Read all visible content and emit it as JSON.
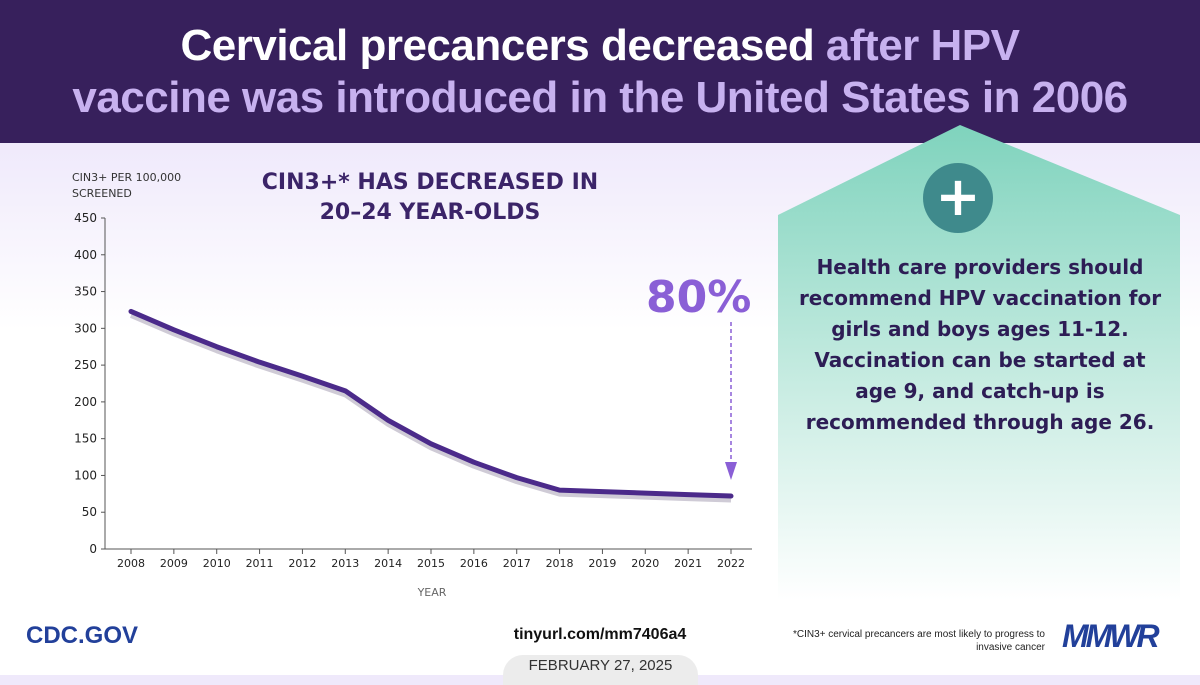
{
  "header": {
    "title_white": "Cervical precancers decreased ",
    "title_light_1": "after HPV",
    "title_light_2": "vaccine was introduced in the United States in 2006"
  },
  "chart_data": {
    "type": "line",
    "title": "CIN3+* HAS DECREASED IN 20–24 YEAR-OLDS",
    "title_line1": "CIN3+* HAS DECREASED IN",
    "title_line2": "20–24 YEAR-OLDS",
    "ylabel_line1": "CIN3+ PER 100,000",
    "ylabel_line2": "SCREENED",
    "xlabel": "YEAR",
    "x": [
      2008,
      2009,
      2010,
      2011,
      2012,
      2013,
      2014,
      2015,
      2016,
      2017,
      2018,
      2019,
      2020,
      2021,
      2022
    ],
    "values": [
      323,
      298,
      275,
      254,
      235,
      215,
      175,
      143,
      118,
      97,
      80,
      78,
      76,
      74,
      72
    ],
    "ylim": [
      0,
      450
    ],
    "yticks": [
      0,
      50,
      100,
      150,
      200,
      250,
      300,
      350,
      400,
      450
    ],
    "grid": false,
    "annotation": "80%",
    "line_color": "#4b2a8a",
    "accent_color": "#8a5fd6"
  },
  "panel": {
    "icon": "plus-icon",
    "text": "Health care providers should recommend HPV vaccination for girls and boys ages 11-12. Vaccination can be started at age 9, and catch-up is recommended through age 26."
  },
  "footer": {
    "site": "CDC.GOV",
    "url": "tinyurl.com/mm7406a4",
    "date": "FEBRUARY 27, 2025",
    "footnote": "*CIN3+ cervical precancers are most likely to progress to invasive cancer",
    "logo": "MMWR"
  }
}
